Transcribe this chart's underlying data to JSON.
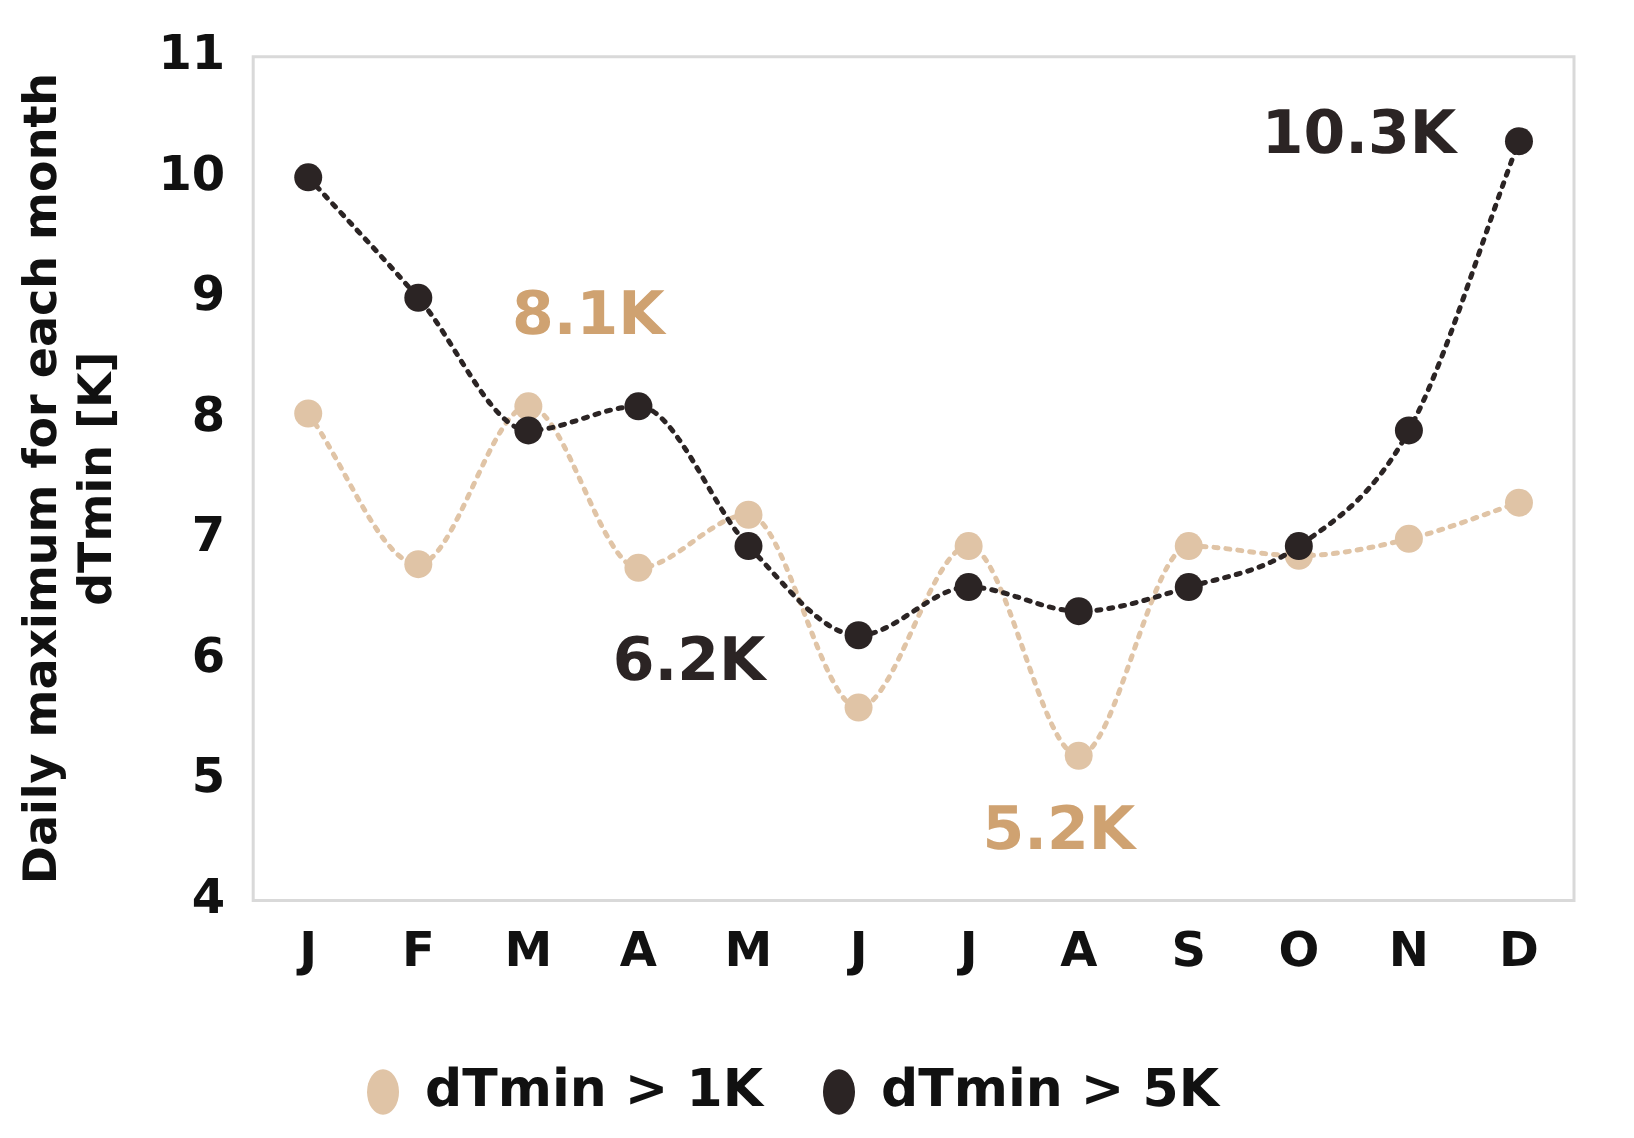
{
  "chart_data": {
    "type": "line",
    "ylabel": "Daily maximum for each month\ndTmin [K]",
    "categories": [
      "J",
      "F",
      "M",
      "A",
      "M",
      "J",
      "J",
      "A",
      "S",
      "O",
      "N",
      "D"
    ],
    "series": [
      {
        "name": "dTmin > 1K",
        "color": "#e0c4a6",
        "values": [
          8.04,
          6.79,
          8.1,
          6.76,
          7.2,
          5.6,
          6.94,
          5.2,
          6.94,
          6.86,
          7.0,
          7.3
        ]
      },
      {
        "name": "dTmin > 5K",
        "color": "#2b2424",
        "values": [
          10.0,
          9.0,
          7.9,
          8.1,
          6.94,
          6.2,
          6.6,
          6.4,
          6.6,
          6.94,
          7.9,
          10.3
        ]
      }
    ],
    "ylim": [
      4,
      11
    ],
    "yticks": [
      4,
      5,
      6,
      7,
      8,
      9,
      10,
      11
    ],
    "grid": false,
    "legend": "bottom",
    "marker": "circle",
    "line_style": "dotted",
    "annotations": [
      {
        "text": "8.1K",
        "x": "M",
        "y": 8.1
      },
      "6.2K",
      "5.2K",
      {
        "text": "10.3K",
        "x": "D",
        "y": 10.3
      }
    ]
  }
}
